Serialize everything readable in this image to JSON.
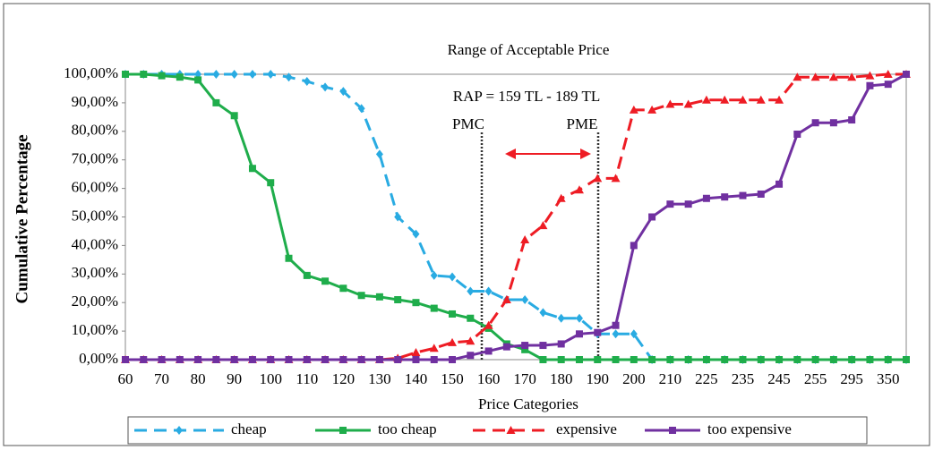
{
  "chart_data": {
    "type": "line",
    "title": "Range of Acceptable Price",
    "xlabel": "Price Categories",
    "ylabel": "Cumulative Percentage",
    "annotations": [
      "RAP  = 159 TL  - 189 TL",
      "PMC",
      "PME"
    ],
    "categories": [
      "60",
      null,
      "70",
      null,
      "80",
      null,
      "90",
      null,
      "100",
      null,
      "110",
      null,
      "120",
      null,
      "130",
      null,
      "140",
      null,
      "150",
      null,
      "160",
      null,
      "170",
      null,
      "180",
      null,
      "190",
      null,
      "200",
      null,
      "210",
      null,
      "225",
      null,
      "235",
      null,
      "245",
      null,
      "255",
      null,
      "295",
      null,
      "350",
      null
    ],
    "ylim": [
      0,
      100
    ],
    "yticks": [
      {
        "value": 0,
        "label": "0,00%"
      },
      {
        "value": 10,
        "label": "10,00%"
      },
      {
        "value": 20,
        "label": "20,00%"
      },
      {
        "value": 30,
        "label": "30,00%"
      },
      {
        "value": 40,
        "label": "40,00%"
      },
      {
        "value": 50,
        "label": "50,00%"
      },
      {
        "value": 60,
        "label": "60,00%"
      },
      {
        "value": 70,
        "label": "70,00%"
      },
      {
        "value": 80,
        "label": "80,00%"
      },
      {
        "value": 90,
        "label": "90,00%"
      },
      {
        "value": 100,
        "label": "100,00%"
      }
    ],
    "legend": "bottom",
    "series": [
      {
        "name": "cheap",
        "color": "#29abe2",
        "dash": true,
        "marker": "diamond",
        "values": [
          100,
          100,
          100,
          100,
          100,
          100,
          100,
          100,
          100,
          99,
          97.5,
          95.5,
          94,
          88,
          72,
          50,
          44,
          29.5,
          29,
          24,
          24,
          21,
          21,
          16.5,
          14.5,
          14.5,
          9,
          9,
          9,
          0,
          0,
          0,
          0,
          0,
          0,
          0,
          0,
          0,
          0,
          0,
          0,
          0,
          0,
          0
        ]
      },
      {
        "name": "too cheap",
        "color": "#1fad4b",
        "dash": false,
        "marker": "square",
        "values": [
          100,
          100,
          99.5,
          99,
          98,
          90,
          85.5,
          67,
          62,
          35.5,
          29.5,
          27.5,
          25,
          22.5,
          22,
          21,
          20,
          18,
          16,
          14.5,
          11,
          5.5,
          3.5,
          0,
          0,
          0,
          0,
          0,
          0,
          0,
          0,
          0,
          0,
          0,
          0,
          0,
          0,
          0,
          0,
          0,
          0,
          0,
          0,
          0
        ]
      },
      {
        "name": "expensive",
        "color": "#ee1c24",
        "dash": true,
        "marker": "triangle",
        "values": [
          0,
          0,
          0,
          0,
          0,
          0,
          0,
          0,
          0,
          0,
          0,
          0,
          0,
          0,
          0,
          0.5,
          2.5,
          4,
          6,
          6.5,
          12,
          21,
          42,
          47,
          56.5,
          59.5,
          63.5,
          63.5,
          87.5,
          87.5,
          89.5,
          89.5,
          91,
          91,
          91,
          91,
          91,
          99,
          99,
          99,
          99,
          99.5,
          100,
          100
        ]
      },
      {
        "name": "too expensive",
        "color": "#7030a0",
        "dash": false,
        "marker": "square",
        "values": [
          0,
          0,
          0,
          0,
          0,
          0,
          0,
          0,
          0,
          0,
          0,
          0,
          0,
          0,
          0,
          0,
          0,
          0,
          0,
          1.5,
          3,
          4.5,
          5,
          5,
          5.5,
          9,
          9.5,
          12,
          40,
          50,
          54.5,
          54.5,
          56.5,
          57,
          57.5,
          58,
          61.5,
          79,
          83,
          83,
          84,
          96,
          96.5,
          100
        ]
      }
    ]
  }
}
